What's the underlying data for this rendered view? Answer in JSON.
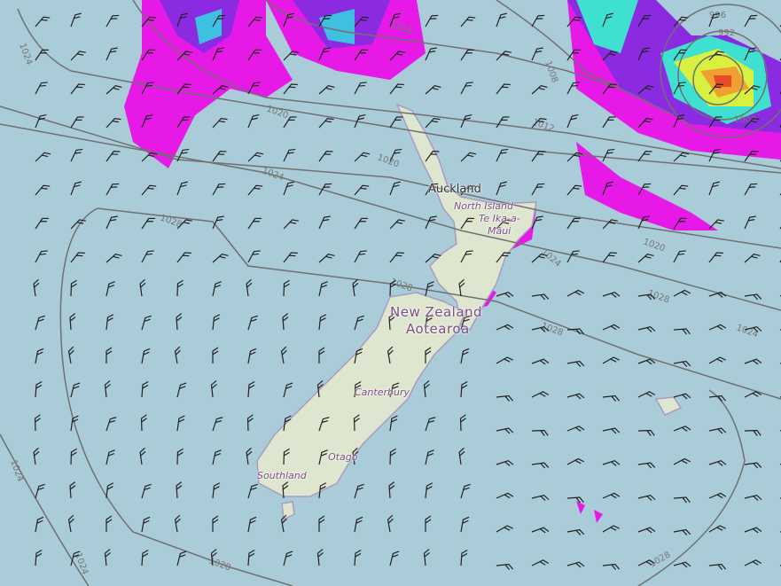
{
  "map": {
    "colors": {
      "sea": "#aacbd8",
      "land": "#dfe6cf",
      "isobar": "#707070",
      "precip_light": "#e619e6",
      "precip_mid": "#8a2be2",
      "precip_heavy": "#40e0d0",
      "precip_max": "#e84a2a"
    },
    "places": {
      "auckland": "Auckland",
      "north_island": "North Island",
      "north_island_maori_1": "Te Ika-a-",
      "north_island_maori_2": "Māui",
      "country": "New Zealand",
      "country_maori": "Aotearoa",
      "canterbury": "Canterbury",
      "otago": "Otago",
      "southland": "Southland"
    },
    "isobar_labels": [
      "1024",
      "1016",
      "1012",
      "1008",
      "1020",
      "1020",
      "1024",
      "1028",
      "1028",
      "1024",
      "1020",
      "1028",
      "1024",
      "1028",
      "1024",
      "1024",
      "1028",
      "1028",
      "996",
      "992",
      "1000"
    ]
  }
}
